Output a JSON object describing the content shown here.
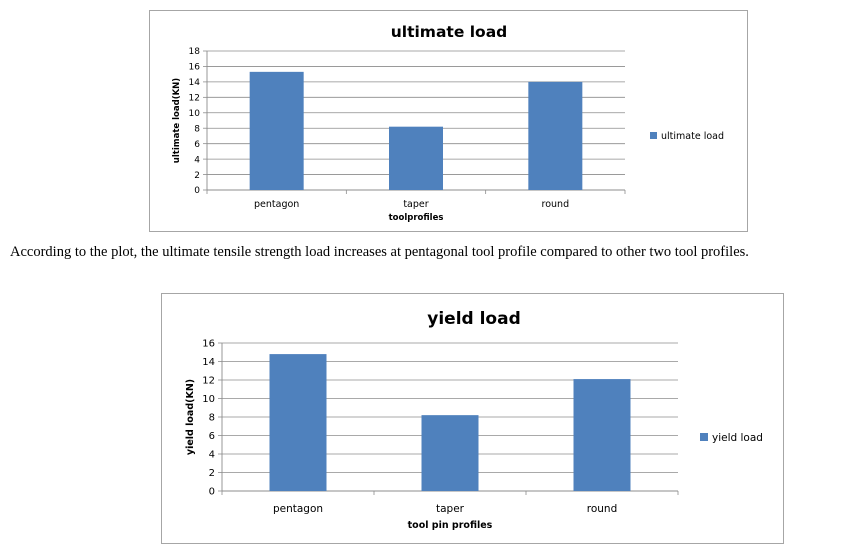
{
  "caption": "According to the plot, the ultimate tensile strength load increases at pentagonal tool profile compared to other two tool profiles.",
  "chart_data": [
    {
      "type": "bar",
      "title": "ultimate load",
      "categories": [
        "pentagon",
        "taper",
        "round"
      ],
      "series": [
        {
          "name": "ultimate load",
          "values": [
            15.3,
            8.2,
            14.0
          ],
          "color": "#4f81bd"
        }
      ],
      "xlabel": "toolprofiles",
      "ylabel": "ultimate load(KN)",
      "ylim": [
        0,
        18
      ],
      "yticks": [
        0,
        2,
        4,
        6,
        8,
        10,
        12,
        14,
        16,
        18
      ],
      "grid": true,
      "legend": "right"
    },
    {
      "type": "bar",
      "title": "yield load",
      "categories": [
        "pentagon",
        "taper",
        "round"
      ],
      "series": [
        {
          "name": "yield load",
          "values": [
            14.8,
            8.2,
            12.1
          ],
          "color": "#4f81bd"
        }
      ],
      "xlabel": "tool pin profiles",
      "ylabel": "yield load(KN)",
      "ylim": [
        0,
        16
      ],
      "yticks": [
        0,
        2,
        4,
        6,
        8,
        10,
        12,
        14,
        16
      ],
      "grid": true,
      "legend": "right"
    }
  ]
}
